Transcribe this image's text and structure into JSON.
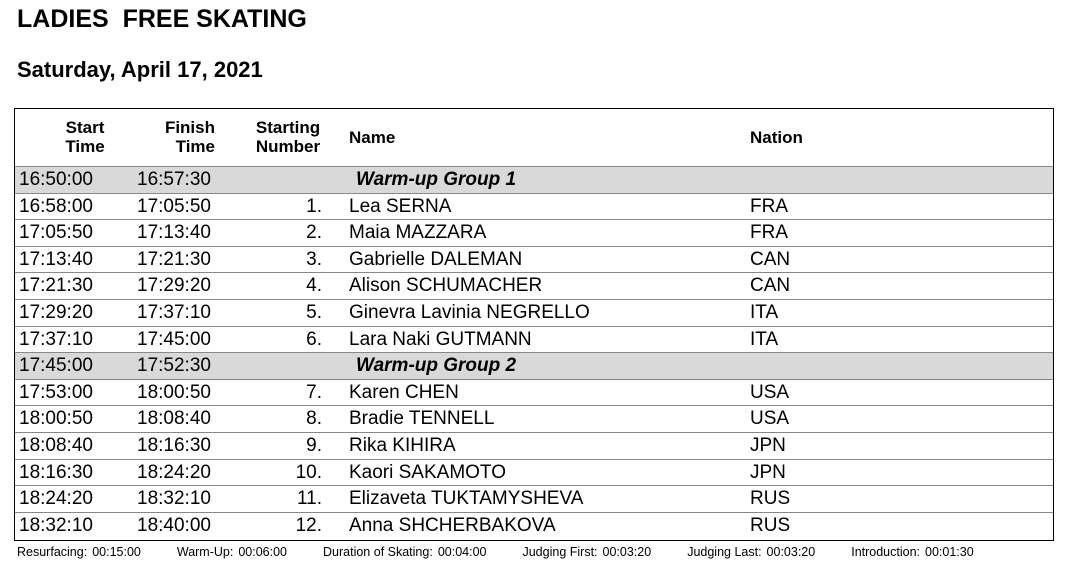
{
  "header": {
    "title": "LADIES  FREE SKATING",
    "date": "Saturday, April 17, 2021"
  },
  "table": {
    "columns": [
      [
        "Start",
        "Time"
      ],
      [
        "Finish",
        "Time"
      ],
      [
        "Starting",
        "Number"
      ],
      [
        "Name"
      ],
      [
        "Nation"
      ]
    ],
    "rows": [
      {
        "group": true,
        "start": "16:50:00",
        "finish": "16:57:30",
        "label": "Warm-up Group 1"
      },
      {
        "start": "16:58:00",
        "finish": "17:05:50",
        "number": "1.",
        "name": "Lea SERNA",
        "nation": "FRA"
      },
      {
        "start": "17:05:50",
        "finish": "17:13:40",
        "number": "2.",
        "name": "Maia MAZZARA",
        "nation": "FRA"
      },
      {
        "start": "17:13:40",
        "finish": "17:21:30",
        "number": "3.",
        "name": "Gabrielle DALEMAN",
        "nation": "CAN"
      },
      {
        "start": "17:21:30",
        "finish": "17:29:20",
        "number": "4.",
        "name": "Alison SCHUMACHER",
        "nation": "CAN"
      },
      {
        "start": "17:29:20",
        "finish": "17:37:10",
        "number": "5.",
        "name": "Ginevra Lavinia NEGRELLO",
        "nation": "ITA"
      },
      {
        "start": "17:37:10",
        "finish": "17:45:00",
        "number": "6.",
        "name": "Lara Naki GUTMANN",
        "nation": "ITA"
      },
      {
        "group": true,
        "start": "17:45:00",
        "finish": "17:52:30",
        "label": "Warm-up Group 2"
      },
      {
        "start": "17:53:00",
        "finish": "18:00:50",
        "number": "7.",
        "name": "Karen CHEN",
        "nation": "USA"
      },
      {
        "start": "18:00:50",
        "finish": "18:08:40",
        "number": "8.",
        "name": "Bradie TENNELL",
        "nation": "USA"
      },
      {
        "start": "18:08:40",
        "finish": "18:16:30",
        "number": "9.",
        "name": "Rika KIHIRA",
        "nation": "JPN"
      },
      {
        "start": "18:16:30",
        "finish": "18:24:20",
        "number": "10.",
        "name": "Kaori SAKAMOTO",
        "nation": "JPN"
      },
      {
        "start": "18:24:20",
        "finish": "18:32:10",
        "number": "11.",
        "name": "Elizaveta TUKTAMYSHEVA",
        "nation": "RUS"
      },
      {
        "start": "18:32:10",
        "finish": "18:40:00",
        "number": "12.",
        "name": "Anna SHCHERBAKOVA",
        "nation": "RUS"
      }
    ]
  },
  "footer": [
    [
      "Resurfacing:",
      "00:15:00"
    ],
    [
      "Warm-Up:",
      "00:06:00"
    ],
    [
      "Duration of Skating:",
      "00:04:00"
    ],
    [
      "Judging First:",
      "00:03:20"
    ],
    [
      "Judging Last:",
      "00:03:20"
    ],
    [
      "Introduction:",
      "00:01:30"
    ]
  ]
}
